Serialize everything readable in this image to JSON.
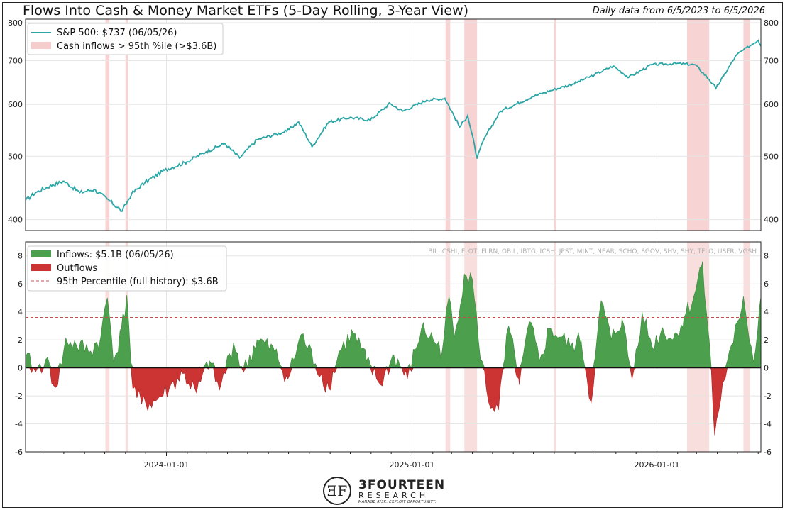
{
  "title": "Flows Into Cash & Money Market ETFs (5-Day Rolling, 3-Year View)",
  "subtitle": "Daily data from 6/5/2023 to 6/5/2026",
  "tickers_text": "BIL, CSHI, FLOT, FLRN, GBIL, IBTG, ICSH, JPST, MINT, NEAR, SCHO, SGOV, SHV, SHY, TFLO, USFR, VGSH",
  "logo": {
    "mark": "ƎF",
    "name": "3FOURTEEN",
    "sub": "RESEARCH",
    "tagline": "MANAGE RISK. EXPLOIT OPPORTUNITY."
  },
  "chart_data": [
    {
      "type": "line",
      "legend": [
        "S&P 500: $737 (06/05/26)",
        "Cash inflows > 95th %ile (>$3.6B)"
      ],
      "legend_position": "top-left",
      "y_scale": "log",
      "ylim": [
        385,
        810
      ],
      "y_ticks": [
        400,
        500,
        600,
        700,
        800
      ],
      "xlim": [
        "2023-06-05",
        "2026-06-05"
      ],
      "grid": true,
      "colors": {
        "line": "#2ba5a5",
        "shade": "#f2b6b6"
      },
      "series": [
        {
          "name": "S&P 500",
          "points": [
            [
              "2023-06-05",
              428
            ],
            [
              "2023-06-20",
              440
            ],
            [
              "2023-07-15",
              452
            ],
            [
              "2023-08-01",
              458
            ],
            [
              "2023-08-25",
              440
            ],
            [
              "2023-09-15",
              445
            ],
            [
              "2023-10-05",
              430
            ],
            [
              "2023-10-27",
              412
            ],
            [
              "2023-11-10",
              438
            ],
            [
              "2023-11-30",
              456
            ],
            [
              "2023-12-29",
              476
            ],
            [
              "2024-01-31",
              490
            ],
            [
              "2024-02-29",
              508
            ],
            [
              "2024-03-28",
              523
            ],
            [
              "2024-04-19",
              497
            ],
            [
              "2024-05-15",
              530
            ],
            [
              "2024-06-28",
              546
            ],
            [
              "2024-07-16",
              564
            ],
            [
              "2024-08-05",
              517
            ],
            [
              "2024-08-30",
              564
            ],
            [
              "2024-09-30",
              573
            ],
            [
              "2024-10-31",
              568
            ],
            [
              "2024-11-29",
              602
            ],
            [
              "2024-12-18",
              586
            ],
            [
              "2025-01-23",
              609
            ],
            [
              "2025-02-19",
              613
            ],
            [
              "2025-03-13",
              554
            ],
            [
              "2025-03-25",
              577
            ],
            [
              "2025-04-08",
              496
            ],
            [
              "2025-04-18",
              530
            ],
            [
              "2025-05-13",
              586
            ],
            [
              "2025-06-30",
              617
            ],
            [
              "2025-07-31",
              632
            ],
            [
              "2025-08-29",
              645
            ],
            [
              "2025-09-30",
              666
            ],
            [
              "2025-10-28",
              687
            ],
            [
              "2025-11-20",
              660
            ],
            [
              "2025-12-24",
              690
            ],
            [
              "2026-01-30",
              693
            ],
            [
              "2026-02-27",
              690
            ],
            [
              "2026-03-20",
              655
            ],
            [
              "2026-03-30",
              635
            ],
            [
              "2026-04-10",
              662
            ],
            [
              "2026-04-30",
              715
            ],
            [
              "2026-05-26",
              745
            ],
            [
              "2026-06-01",
              752
            ],
            [
              "2026-06-05",
              737
            ]
          ]
        }
      ],
      "shaded_periods": [
        [
          "2023-10-02",
          "2023-10-08"
        ],
        [
          "2023-11-01",
          "2023-11-05"
        ],
        [
          "2025-02-20",
          "2025-02-27"
        ],
        [
          "2025-03-20",
          "2025-04-08"
        ],
        [
          "2025-08-01",
          "2025-08-04"
        ],
        [
          "2026-02-15",
          "2026-03-20"
        ],
        [
          "2026-05-10",
          "2026-05-20"
        ]
      ]
    },
    {
      "type": "area",
      "legend": [
        "Inflows: $5.1B (06/05/26)",
        "Outflows",
        "95th Percentile (full history): $3.6B"
      ],
      "legend_position": "top-left",
      "ylim": [
        -6,
        9
      ],
      "y_ticks": [
        -6,
        -4,
        -2,
        0,
        2,
        4,
        6,
        8
      ],
      "x_ticks": [
        "2024-01-01",
        "2025-01-01",
        "2026-01-01"
      ],
      "xlim": [
        "2023-06-05",
        "2026-06-05"
      ],
      "threshold": 3.6,
      "grid": true,
      "colors": {
        "inflow": "#4c9f4c",
        "outflow": "#cc3333",
        "threshold": "#c0504d"
      },
      "series": [
        {
          "name": "5-day rolling flows ($B)",
          "points": [
            [
              "2023-06-05",
              0.8
            ],
            [
              "2023-06-20",
              -0.3
            ],
            [
              "2023-07-05",
              0.6
            ],
            [
              "2023-07-20",
              -1.4
            ],
            [
              "2023-08-05",
              2.0
            ],
            [
              "2023-08-20",
              1.6
            ],
            [
              "2023-09-10",
              1.2
            ],
            [
              "2023-09-25",
              2.2
            ],
            [
              "2023-10-05",
              5.0
            ],
            [
              "2023-10-15",
              0.6
            ],
            [
              "2023-10-25",
              2.4
            ],
            [
              "2023-11-03",
              5.2
            ],
            [
              "2023-11-12",
              -1.5
            ],
            [
              "2023-11-25",
              -2.6
            ],
            [
              "2023-12-15",
              -2.4
            ],
            [
              "2024-01-05",
              -1.5
            ],
            [
              "2024-01-25",
              -0.4
            ],
            [
              "2024-02-15",
              -1.8
            ],
            [
              "2024-03-05",
              0.5
            ],
            [
              "2024-03-20",
              -1.6
            ],
            [
              "2024-04-10",
              1.8
            ],
            [
              "2024-04-25",
              -0.3
            ],
            [
              "2024-05-15",
              2.0
            ],
            [
              "2024-06-10",
              1.2
            ],
            [
              "2024-06-30",
              -0.8
            ],
            [
              "2024-07-20",
              2.4
            ],
            [
              "2024-08-10",
              0.3
            ],
            [
              "2024-08-30",
              -1.5
            ],
            [
              "2024-09-15",
              1.2
            ],
            [
              "2024-10-05",
              2.5
            ],
            [
              "2024-10-25",
              0.5
            ],
            [
              "2024-11-15",
              -1.2
            ],
            [
              "2024-12-05",
              0.9
            ],
            [
              "2024-12-25",
              -0.8
            ],
            [
              "2025-01-15",
              2.8
            ],
            [
              "2025-02-01",
              2.1
            ],
            [
              "2025-02-15",
              1.2
            ],
            [
              "2025-02-25",
              5.1
            ],
            [
              "2025-03-05",
              2.2
            ],
            [
              "2025-03-20",
              6.7
            ],
            [
              "2025-04-01",
              6.3
            ],
            [
              "2025-04-10",
              2.0
            ],
            [
              "2025-04-25",
              -2.4
            ],
            [
              "2025-05-10",
              -3.0
            ],
            [
              "2025-05-25",
              3.0
            ],
            [
              "2025-06-10",
              -1.2
            ],
            [
              "2025-06-25",
              3.3
            ],
            [
              "2025-07-10",
              0.5
            ],
            [
              "2025-07-25",
              2.8
            ],
            [
              "2025-08-10",
              2.2
            ],
            [
              "2025-08-25",
              1.5
            ],
            [
              "2025-09-10",
              2.0
            ],
            [
              "2025-09-25",
              -2.5
            ],
            [
              "2025-10-10",
              4.8
            ],
            [
              "2025-10-25",
              2.0
            ],
            [
              "2025-11-10",
              3.5
            ],
            [
              "2025-11-25",
              -0.8
            ],
            [
              "2025-12-10",
              4.0
            ],
            [
              "2025-12-25",
              1.5
            ],
            [
              "2026-01-10",
              2.8
            ],
            [
              "2026-01-25",
              2.0
            ],
            [
              "2026-02-10",
              3.5
            ],
            [
              "2026-02-25",
              5.1
            ],
            [
              "2026-03-10",
              7.6
            ],
            [
              "2026-03-20",
              2.0
            ],
            [
              "2026-03-28",
              -4.8
            ],
            [
              "2026-04-10",
              -1.0
            ],
            [
              "2026-04-25",
              1.8
            ],
            [
              "2026-05-10",
              5.1
            ],
            [
              "2026-05-25",
              0.4
            ],
            [
              "2026-06-05",
              5.1
            ]
          ]
        }
      ]
    }
  ]
}
